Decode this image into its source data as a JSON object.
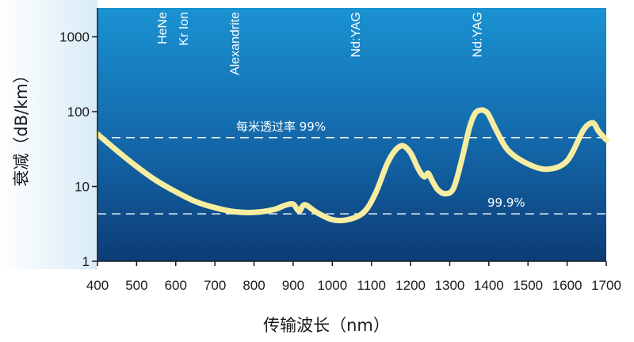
{
  "chart_data": {
    "type": "line",
    "title": "",
    "xlabel": "传输波长（nm）",
    "ylabel": "衰减（dB/km）",
    "y_scale": "log",
    "xlim": [
      400,
      1700
    ],
    "ylim": [
      1,
      2000
    ],
    "x_ticks": [
      "400",
      "500",
      "600",
      "700",
      "800",
      "900",
      "1000",
      "1100",
      "1200",
      "1300",
      "1400",
      "1500",
      "1600",
      "1700"
    ],
    "y_ticks": [
      "1",
      "10",
      "100",
      "1000"
    ],
    "colors": {
      "curve": "#f6eda0",
      "background_top": "#168fd0",
      "background_bottom": "#0d3f78",
      "reference_line": "#ffffff"
    },
    "series": [
      {
        "x": [
          400,
          450,
          500,
          550,
          600,
          650,
          700,
          750,
          800,
          850,
          880,
          900,
          915,
          930,
          960,
          1000,
          1040,
          1080,
          1110,
          1140,
          1160,
          1180,
          1200,
          1220,
          1235,
          1245,
          1255,
          1270,
          1290,
          1310,
          1330,
          1350,
          1365,
          1380,
          1390,
          1400,
          1420,
          1450,
          1500,
          1550,
          1600,
          1640,
          1660,
          1670,
          1680,
          1700
        ],
        "y": [
          50,
          30,
          18.5,
          12,
          8.5,
          6.3,
          5.2,
          4.6,
          4.5,
          4.9,
          5.6,
          5.8,
          4.7,
          5.7,
          4.5,
          3.6,
          3.6,
          4.5,
          8,
          20,
          30,
          35,
          28,
          17,
          13.5,
          15,
          12,
          9,
          8,
          9.5,
          22,
          60,
          95,
          105,
          102,
          90,
          55,
          30,
          20,
          17,
          22,
          55,
          70,
          68,
          55,
          42
        ]
      }
    ],
    "reference_lines": [
      {
        "y": 45,
        "label": "每米透过率 99%"
      },
      {
        "y": 4.3,
        "label": "99.9%"
      }
    ],
    "annotations": [
      {
        "x": 570,
        "label": "HeNe"
      },
      {
        "x": 625,
        "label": "Kr Ion"
      },
      {
        "x": 755,
        "label": "Alexandrite"
      },
      {
        "x": 1064,
        "label": "Nd:YAG"
      },
      {
        "x": 1375,
        "label": "Nd:YAG"
      }
    ],
    "grid": false
  }
}
